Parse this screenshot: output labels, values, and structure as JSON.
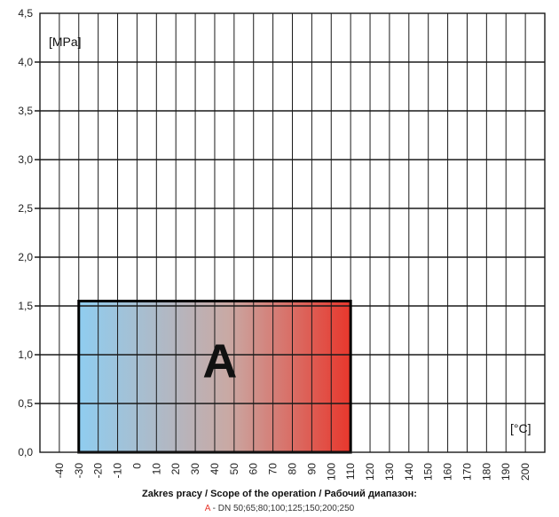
{
  "chart_data": {
    "type": "area",
    "title": "",
    "ylabel": "[MPa]",
    "xlabel": "[°C]",
    "xlim": [
      -50,
      210
    ],
    "ylim": [
      0,
      4.5
    ],
    "y_ticks": [
      "0,0",
      "0,5",
      "1,0",
      "1,5",
      "2,0",
      "2,5",
      "3,0",
      "3,5",
      "4,0",
      "4,5"
    ],
    "x_ticks": [
      "-40",
      "-30",
      "-20",
      "-10",
      "0",
      "10",
      "20",
      "30",
      "40",
      "50",
      "60",
      "70",
      "80",
      "90",
      "100",
      "110",
      "120",
      "130",
      "140",
      "150",
      "160",
      "170",
      "180",
      "190",
      "200"
    ],
    "highlight_tick": "100",
    "grid": true,
    "region": {
      "label": "A",
      "x_range": [
        -30,
        110
      ],
      "y_range": [
        0,
        1.55
      ],
      "gradient": [
        "#8fcdf0",
        "#e8372c"
      ]
    }
  },
  "caption": {
    "title": "Zakres pracy / Scope of the operation / Рабочий диапазон:",
    "marker": "A",
    "text": " - DN 50;65;80;100;125;150;200;250"
  },
  "colors": {
    "highlight": "#e8372c",
    "grid": "#1a1a1a"
  }
}
